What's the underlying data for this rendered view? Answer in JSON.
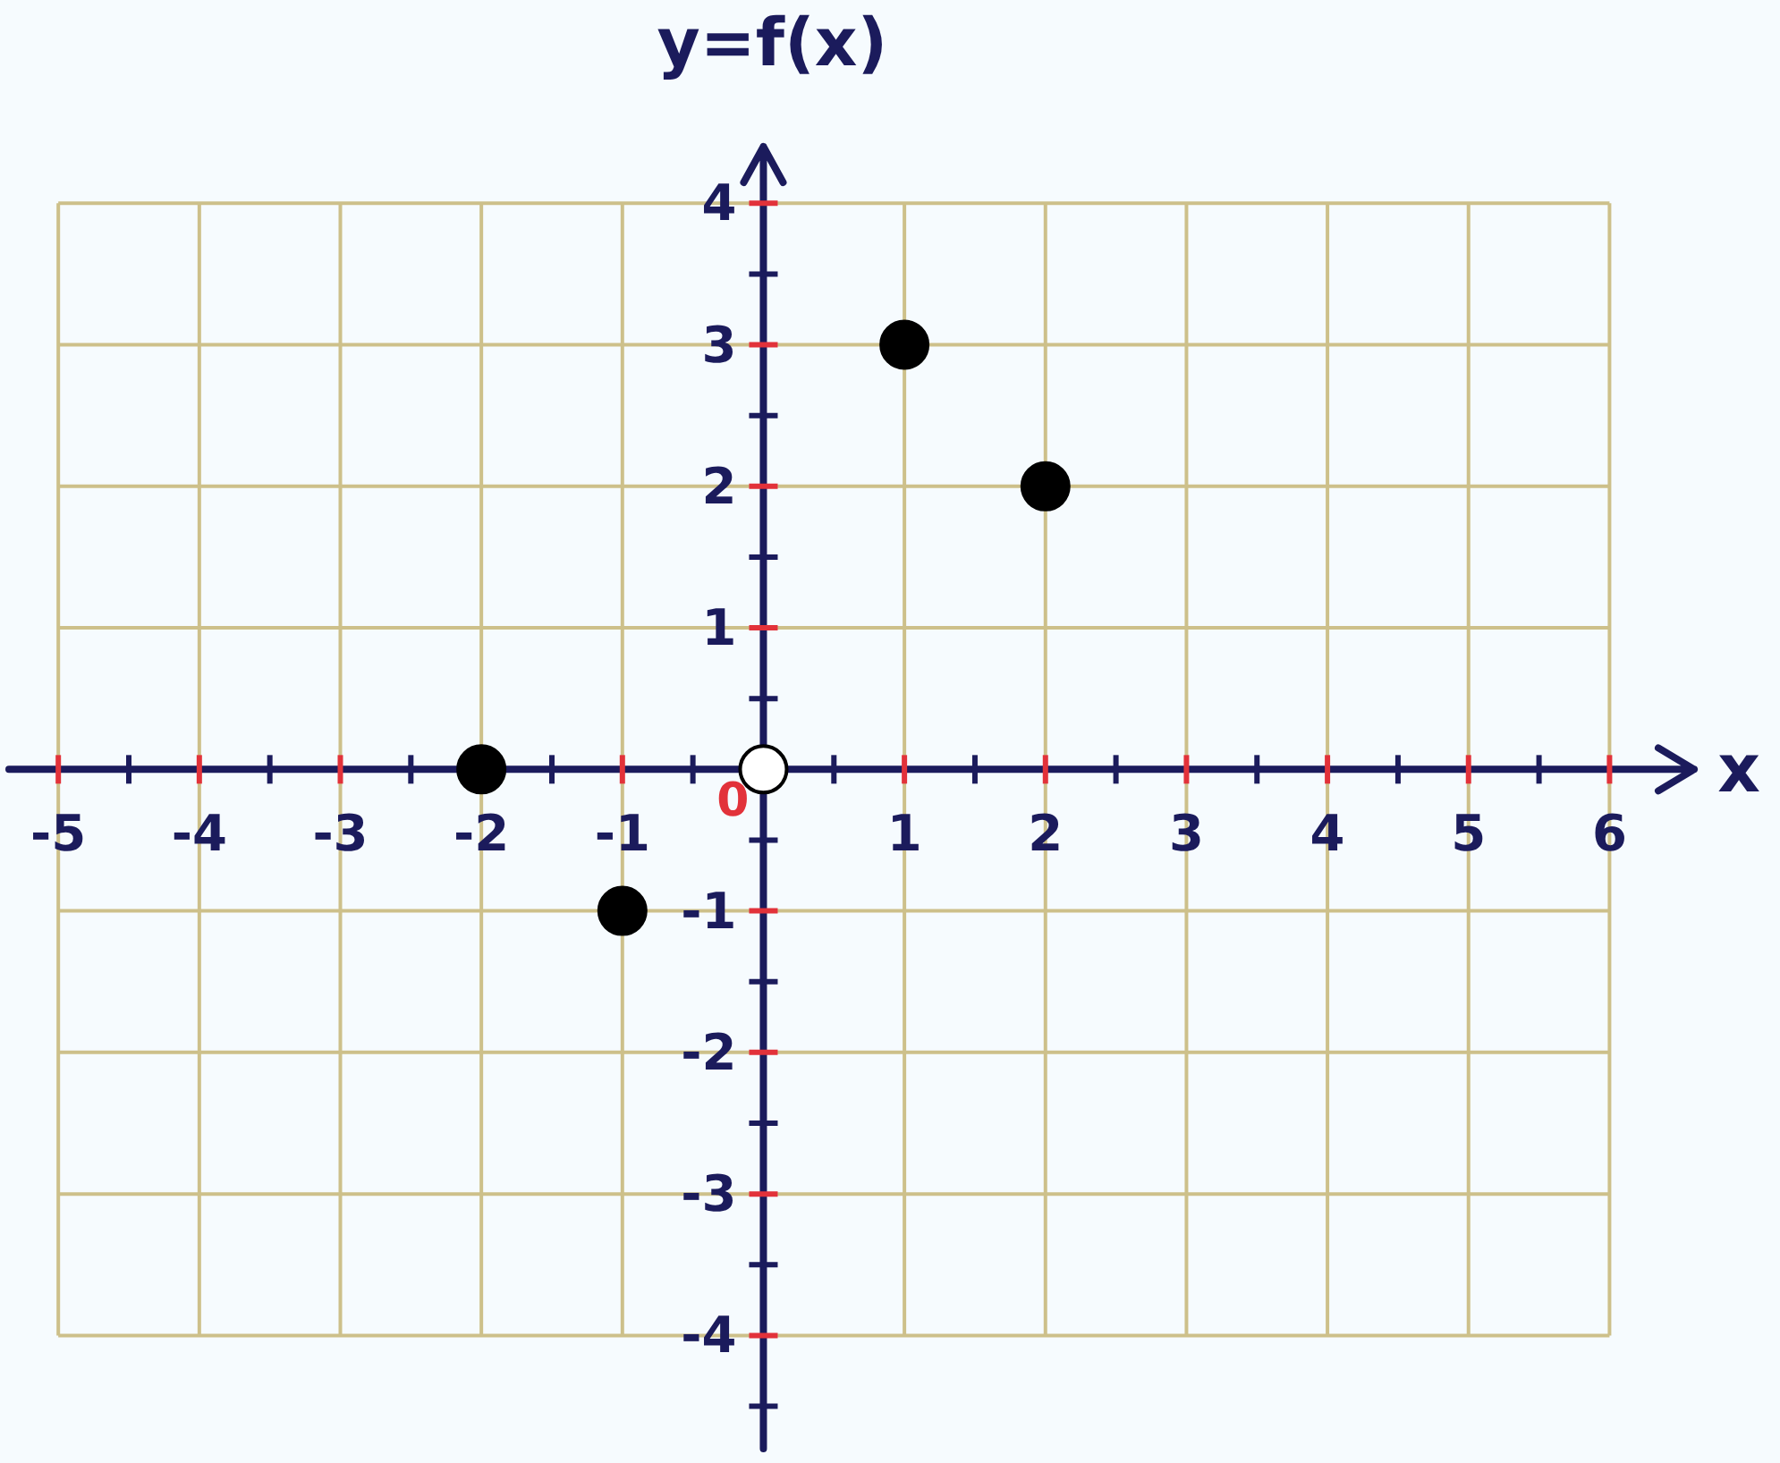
{
  "chart_data": {
    "type": "scatter",
    "xlabel": "x",
    "ylabel": "y=f(x)",
    "xlim": [
      -5.35,
      6.6
    ],
    "ylim": [
      -4.8,
      4.4
    ],
    "xticks": [
      -5,
      {
        "value": -4.5,
        "label": null
      },
      -4,
      {
        "value": -3.5,
        "label": null
      },
      -3,
      {
        "value": -2.5,
        "label": null
      },
      -2,
      {
        "value": -1.5,
        "label": null
      },
      -1,
      {
        "value": -0.5,
        "label": null
      },
      {
        "value": 0.5,
        "label": null
      },
      1,
      {
        "value": 1.5,
        "label": null
      },
      2,
      {
        "value": 2.5,
        "label": null
      },
      3,
      {
        "value": 3.5,
        "label": null
      },
      4,
      {
        "value": 4.5,
        "label": null
      },
      5,
      {
        "value": 5.5,
        "label": null
      },
      6
    ],
    "yticks": [
      {
        "value": -4.5,
        "label": null
      },
      -4,
      {
        "value": -3.5,
        "label": null
      },
      -3,
      {
        "value": -2.5,
        "label": null
      },
      -2,
      {
        "value": -1.5,
        "label": null
      },
      -1,
      {
        "value": -0.5,
        "label": null
      },
      {
        "value": 0.5,
        "label": null
      },
      1,
      {
        "value": 1.5,
        "label": null
      },
      2,
      {
        "value": 2.5,
        "label": null
      },
      3,
      {
        "value": 3.5,
        "label": null
      },
      4
    ],
    "grid": true,
    "marker": "circle",
    "annotations": [
      {
        "text": "0",
        "x": 0,
        "y": 0
      }
    ],
    "series": [
      {
        "color": "#000000",
        "x": [
          -2,
          -1,
          1,
          2
        ],
        "values": [
          0,
          -1,
          3,
          2
        ]
      },
      {
        "color": "#ffffff",
        "x": [
          0
        ],
        "values": [
          0
        ]
      }
    ]
  }
}
